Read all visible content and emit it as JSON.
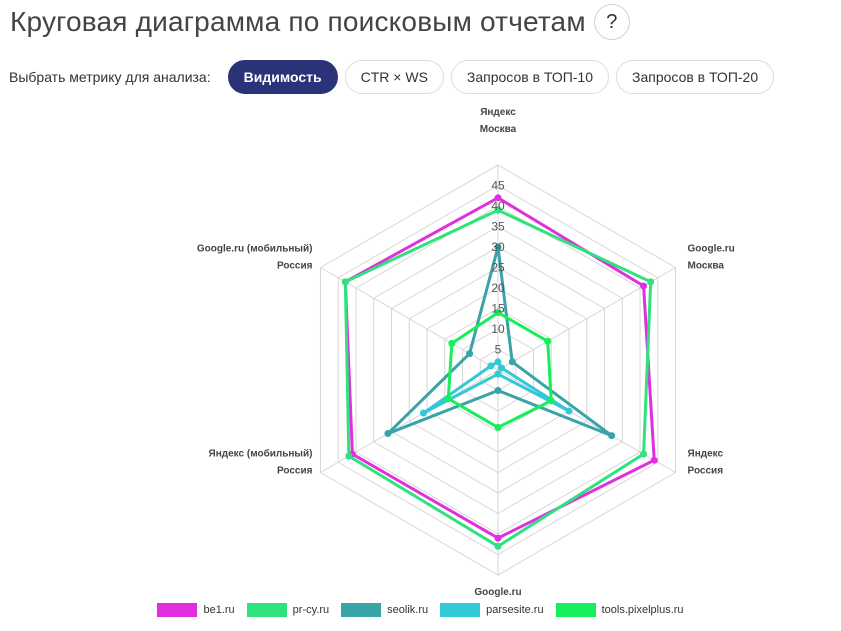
{
  "header": {
    "title": "Круговая диаграмма по поисковым отчетам",
    "help_label": "?"
  },
  "metrics": {
    "label": "Выбрать метрику для анализа:",
    "options": [
      {
        "label": "Видимость",
        "active": true
      },
      {
        "label": "CTR × WS",
        "active": false
      },
      {
        "label": "Запросов в ТОП-10",
        "active": false
      },
      {
        "label": "Запросов в ТОП-20",
        "active": false
      }
    ]
  },
  "chart_data": {
    "type": "radar",
    "axes": [
      {
        "line1": "Яндекс",
        "line2": "Москва"
      },
      {
        "line1": "Google.ru",
        "line2": "Москва"
      },
      {
        "line1": "Яндекс",
        "line2": "Россия"
      },
      {
        "line1": "Google.ru",
        "line2": "Россия"
      },
      {
        "line1": "Яндекс (мобильный)",
        "line2": "Россия"
      },
      {
        "line1": "Google.ru (мобильный)",
        "line2": "Россия"
      }
    ],
    "ticks": [
      5,
      10,
      15,
      20,
      25,
      30,
      35,
      40,
      45
    ],
    "range": [
      0,
      50
    ],
    "grid": true,
    "legend_position": "bottom",
    "series": [
      {
        "name": "be1.ru",
        "color": "#e12fe0",
        "values": [
          42,
          41,
          44,
          41,
          41,
          43
        ]
      },
      {
        "name": "pr-cy.ru",
        "color": "#2ee37e",
        "values": [
          39,
          43,
          41,
          43,
          42,
          43
        ]
      },
      {
        "name": "seolik.ru",
        "color": "#3aa3a7",
        "values": [
          30,
          4,
          32,
          5,
          31,
          8
        ]
      },
      {
        "name": "parsesite.ru",
        "color": "#31c9d6",
        "values": [
          2,
          1,
          20,
          1,
          21,
          2
        ]
      },
      {
        "name": "tools.pixelplus.ru",
        "color": "#16ef5a",
        "values": [
          14,
          14,
          15,
          14,
          14,
          13
        ]
      }
    ]
  }
}
